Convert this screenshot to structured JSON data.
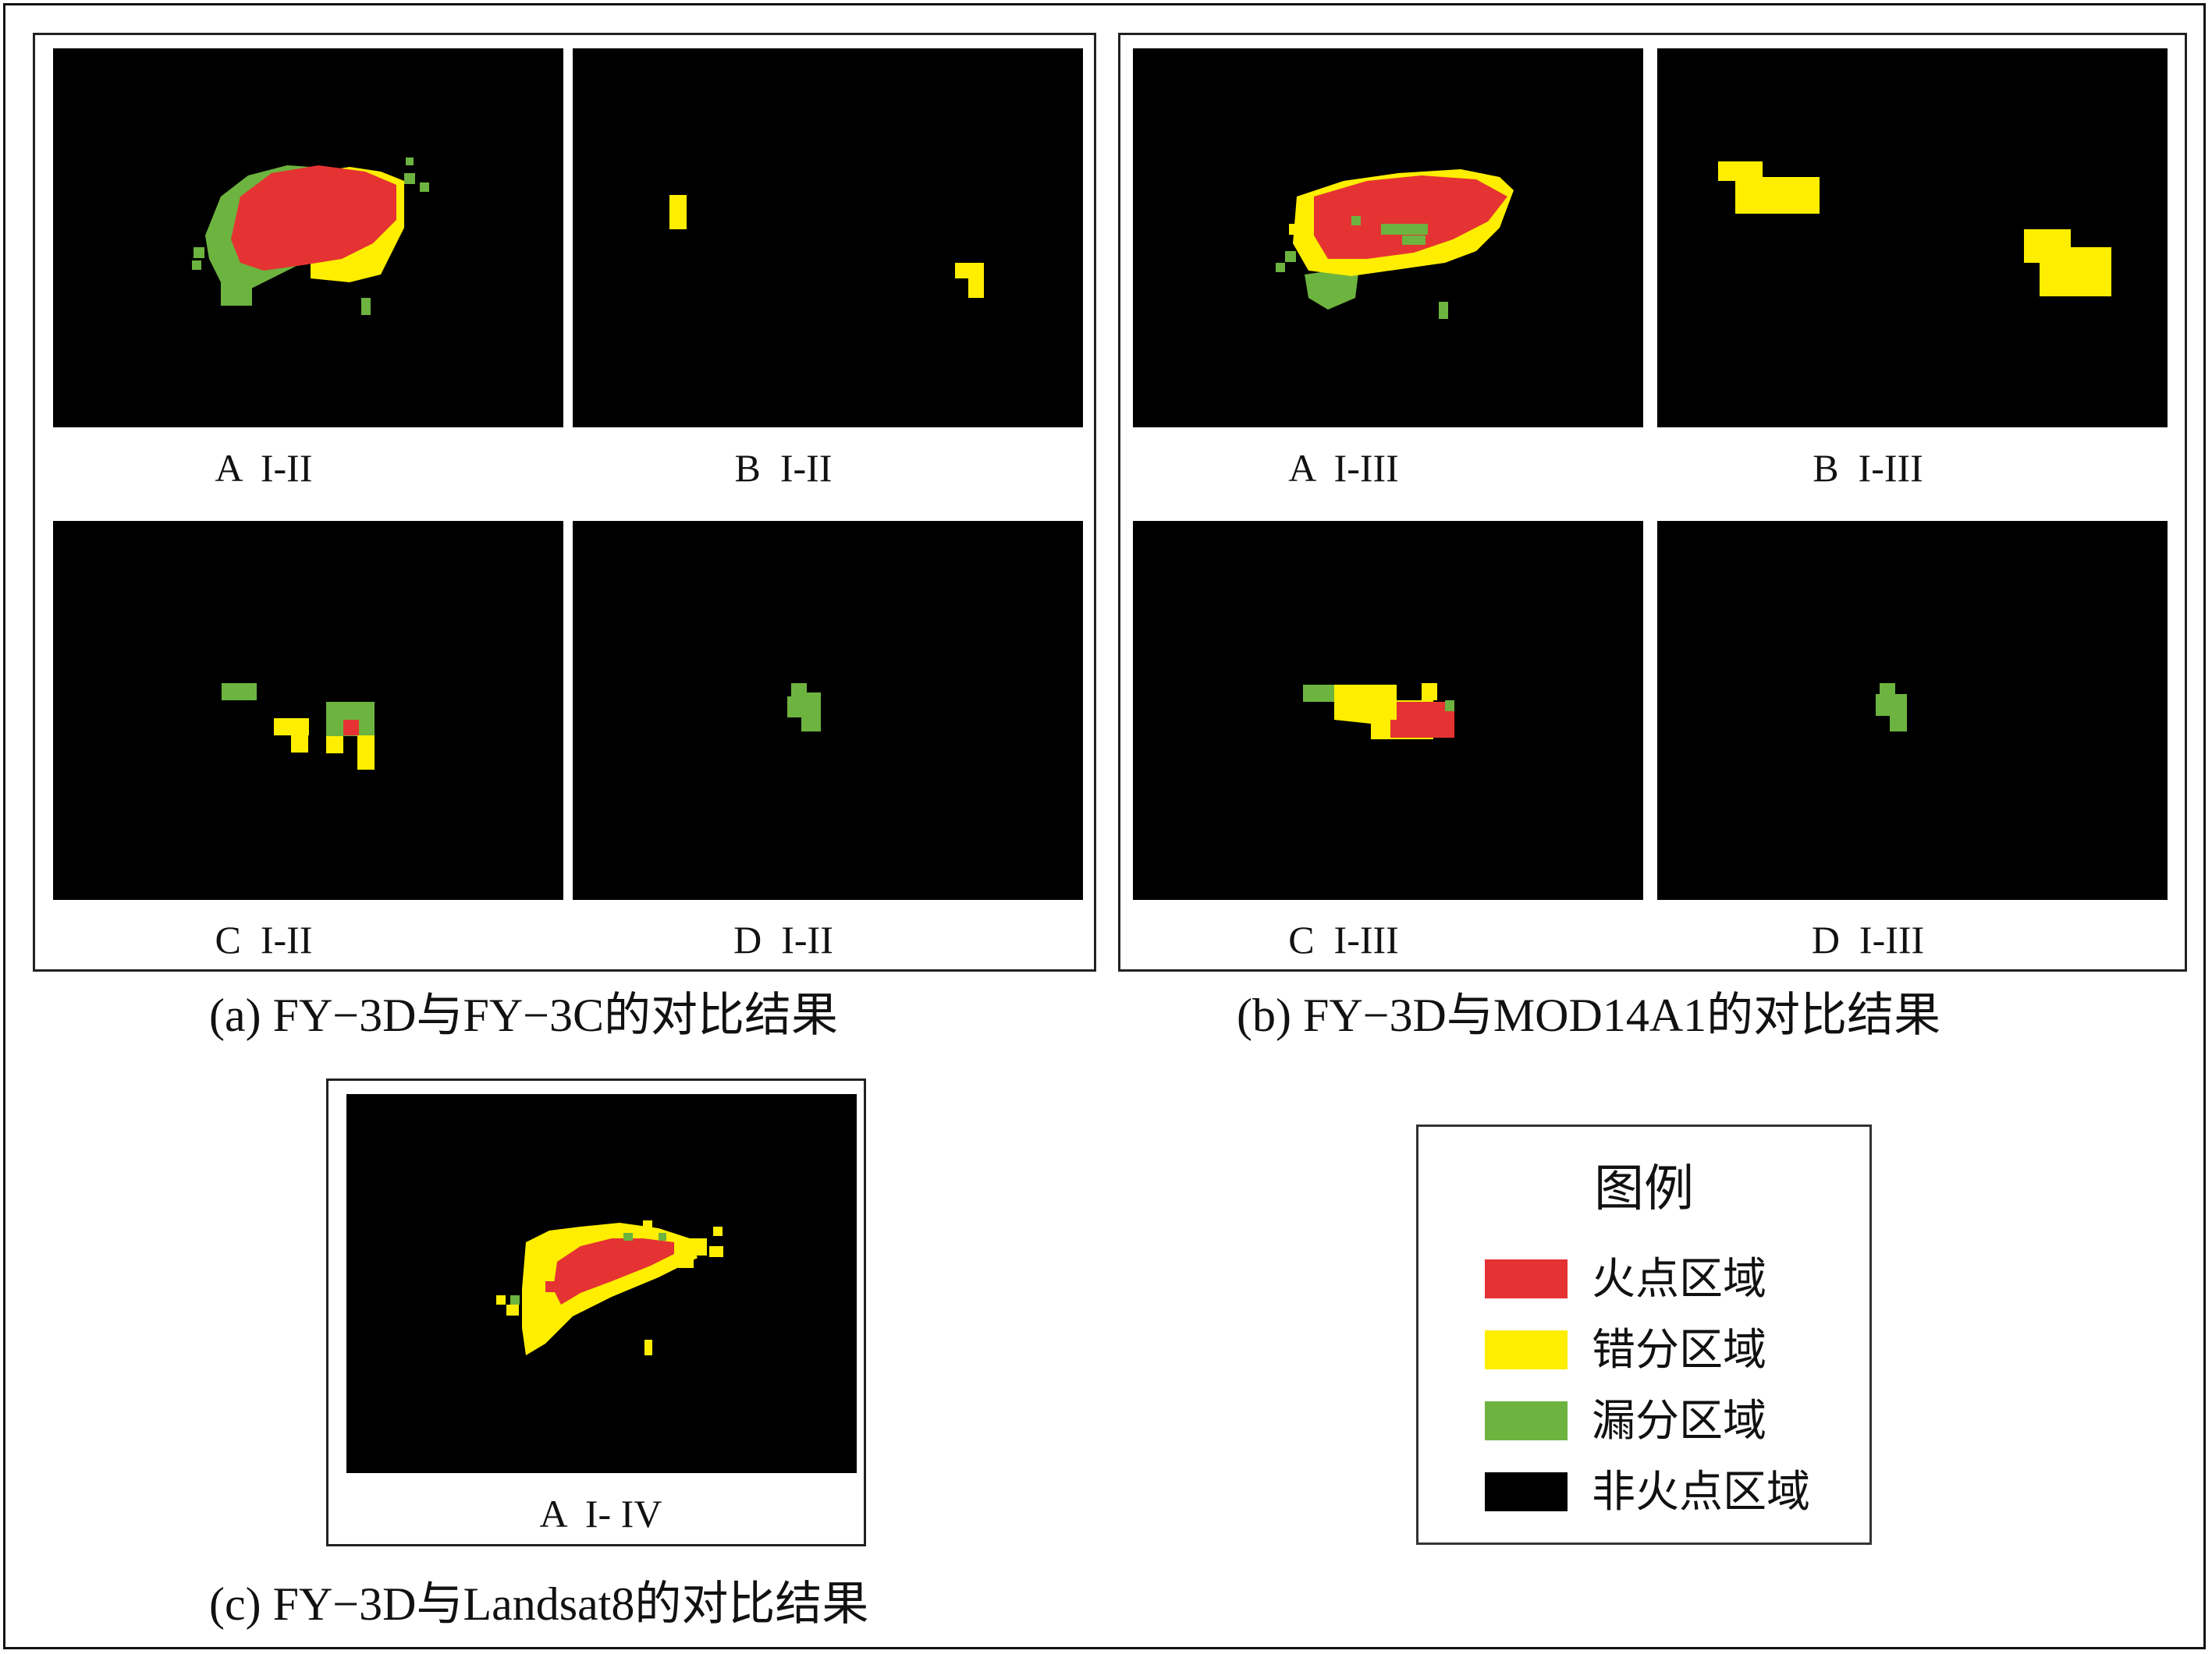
{
  "colors": {
    "fire": "#e53333",
    "commission": "#ffee00",
    "omission": "#6db33f",
    "non_fire": "#000000"
  },
  "group_a": {
    "caption": "(a) FY−3D与FY−3C的对比结果",
    "panels": [
      {
        "label": "A  I-II"
      },
      {
        "label": "B  I-II"
      },
      {
        "label": "C  I-II"
      },
      {
        "label": "D  I-II"
      }
    ]
  },
  "group_b": {
    "caption": "(b) FY−3D与MOD14A1的对比结果",
    "panels": [
      {
        "label": "A  I-III"
      },
      {
        "label": "B  I-III"
      },
      {
        "label": "C  I-III"
      },
      {
        "label": "D  I-III"
      }
    ]
  },
  "group_c": {
    "caption": "(c) FY−3D与Landsat8的对比结果",
    "panels": [
      {
        "label": "A  I- IV"
      }
    ]
  },
  "legend": {
    "title": "图例",
    "items": [
      {
        "label": "火点区域",
        "color": "#e53333"
      },
      {
        "label": "错分区域",
        "color": "#ffee00"
      },
      {
        "label": "漏分区域",
        "color": "#6db33f"
      },
      {
        "label": "非火点区域",
        "color": "#000000"
      }
    ]
  }
}
